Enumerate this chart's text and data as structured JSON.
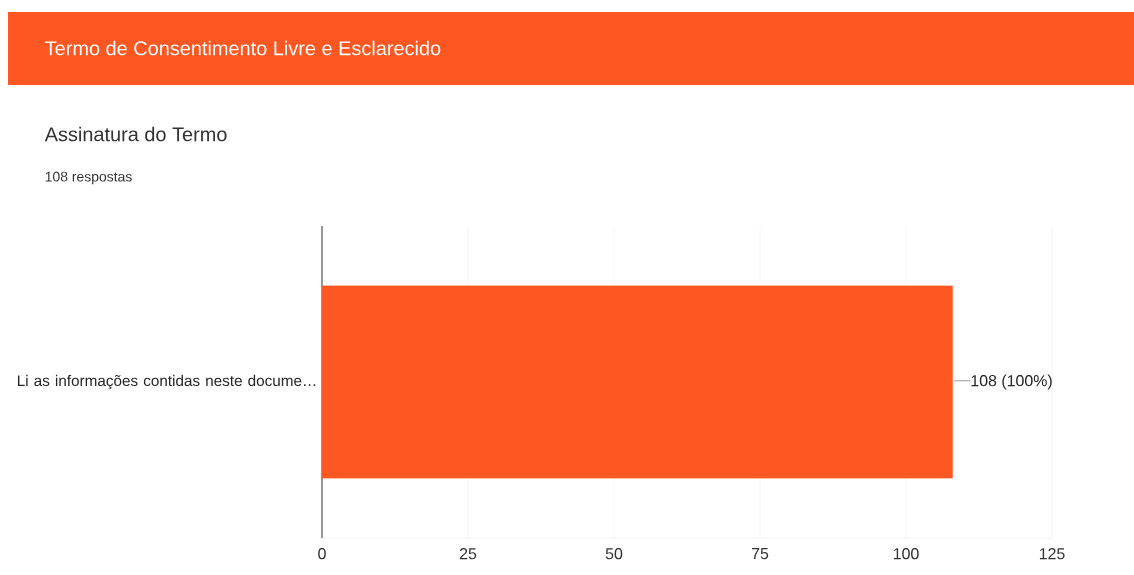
{
  "chart_data": {
    "type": "bar",
    "orientation": "horizontal",
    "title": "Termo de Consentimento Livre e Esclarecido",
    "subtitle": "Assinatura do Termo",
    "annotations": [
      "108 respostas"
    ],
    "categories": [
      "Li as informações contidas neste docume…"
    ],
    "values": [
      108
    ],
    "value_labels": [
      "108 (100%)"
    ],
    "color": "#ff5722",
    "xlim": [
      0,
      125
    ],
    "xticks": [
      0,
      25,
      50,
      75,
      100,
      125
    ],
    "grid": "x"
  }
}
